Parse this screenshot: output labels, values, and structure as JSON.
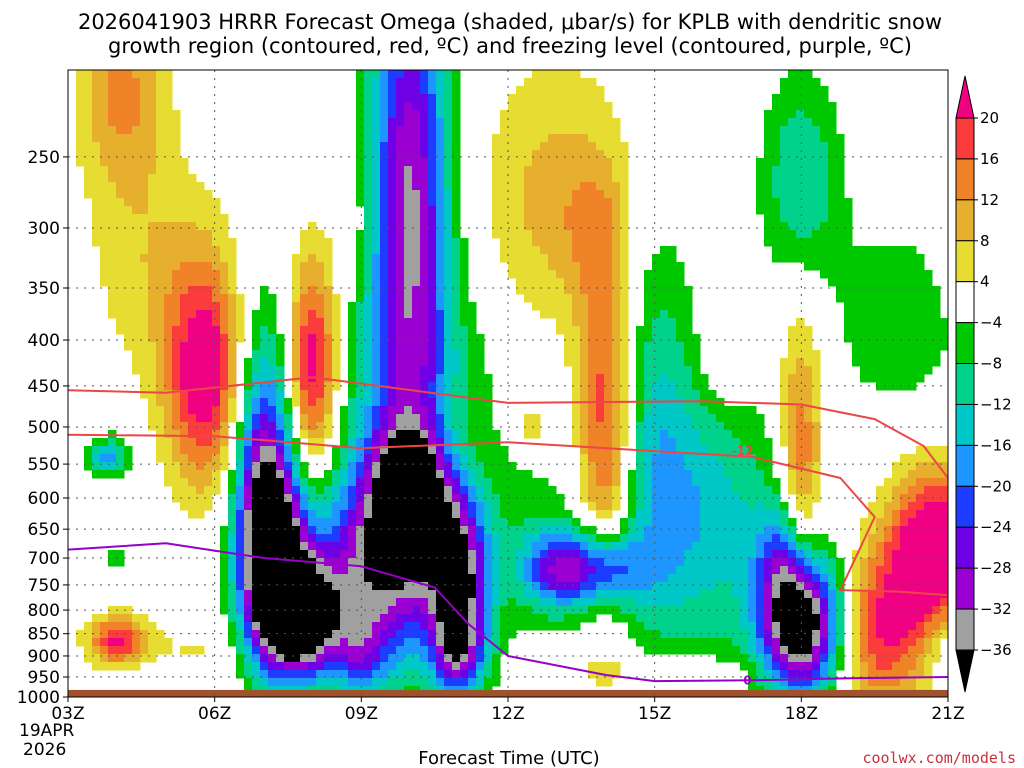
{
  "chart_data": {
    "type": "heatmap",
    "title_line1": "2026041903 HRRR Forecast Omega (shaded, μbar/s) for KPLB with dendritic snow",
    "title_line2": "growth region (contoured, red, ºC) and freezing level (contoured, purple, ºC)",
    "xlabel": "Forecast Time (UTC)",
    "ylabel": "",
    "x_ticks": [
      "03Z",
      "06Z",
      "09Z",
      "12Z",
      "15Z",
      "18Z",
      "21Z"
    ],
    "x_hours": [
      3,
      6,
      9,
      12,
      15,
      18,
      21
    ],
    "x_start_date_line1": "19APR",
    "x_start_date_line2": "2026",
    "y_ticks": [
      250,
      300,
      350,
      400,
      450,
      500,
      550,
      600,
      650,
      700,
      750,
      800,
      850,
      900,
      950,
      1000
    ],
    "y_label_strings": [
      "250",
      "300",
      "350",
      "400",
      "450",
      "500",
      "550",
      "600",
      "650",
      "700",
      "750",
      "800",
      "850",
      "900",
      "950",
      "1000"
    ],
    "y_range_hPa": [
      200,
      1000
    ],
    "colorbar": {
      "levels": [
        -36,
        -32,
        -28,
        -24,
        -20,
        -16,
        -12,
        -8,
        -4,
        4,
        8,
        12,
        16,
        20
      ],
      "labels": [
        "20",
        "16",
        "12",
        "8",
        "4",
        "−4",
        "−8",
        "−12",
        "−16",
        "−20",
        "−24",
        "−28",
        "−32",
        "−36"
      ],
      "colors": [
        "#000000",
        "#a0a0a0",
        "#9b00d2",
        "#6e00e6",
        "#1e3cff",
        "#1e96ff",
        "#00c8c8",
        "#00d28c",
        "#00c800",
        "#ffffff",
        "#e6dc32",
        "#e6af2d",
        "#f08228",
        "#fa3c3c",
        "#f00082"
      ],
      "unit": "μbar/s"
    },
    "features": [
      {
        "kind": "ascent_max",
        "hour": 7.8,
        "hPa": 830,
        "omega": -36
      },
      {
        "kind": "ascent_max",
        "hour": 18.0,
        "hPa": 840,
        "omega": -36
      },
      {
        "kind": "ascent_core",
        "hour": 10.0,
        "hPa": 300,
        "omega": -28
      },
      {
        "kind": "descent_max",
        "hour": 5.8,
        "hPa": 430,
        "omega": 20
      },
      {
        "kind": "descent_max",
        "hour": 8.0,
        "hPa": 420,
        "omega": 20
      },
      {
        "kind": "descent_max",
        "hour": 14.0,
        "hPa": 560,
        "omega": 20
      },
      {
        "kind": "descent_max",
        "hour": 21.0,
        "hPa": 680,
        "omega": 20
      }
    ],
    "contours": {
      "dgz_red": {
        "label": "-12",
        "color": "#ec4646",
        "upper_boundary": [
          [
            3,
            455
          ],
          [
            5,
            458
          ],
          [
            8,
            440
          ],
          [
            12,
            470
          ],
          [
            16,
            468
          ],
          [
            18,
            472
          ],
          [
            19.5,
            490
          ],
          [
            20.5,
            525
          ],
          [
            21,
            570
          ]
        ],
        "lower_boundary": [
          [
            3,
            510
          ],
          [
            6,
            512
          ],
          [
            9,
            528
          ],
          [
            12,
            520
          ],
          [
            15,
            532
          ],
          [
            17,
            540
          ],
          [
            18.8,
            570
          ],
          [
            19.5,
            630
          ],
          [
            18.8,
            760
          ],
          [
            20,
            763
          ],
          [
            21,
            770
          ]
        ]
      },
      "freezing_level_purple": {
        "label": "0",
        "color": "#9600c8",
        "points": [
          [
            3,
            685
          ],
          [
            5,
            674
          ],
          [
            7,
            700
          ],
          [
            9,
            715
          ],
          [
            10.5,
            755
          ],
          [
            11.2,
            830
          ],
          [
            12,
            900
          ],
          [
            14,
            945
          ],
          [
            15,
            960
          ],
          [
            17,
            958
          ],
          [
            19,
            953
          ],
          [
            21,
            950
          ]
        ]
      }
    },
    "terrain": {
      "color": "#a0522d",
      "from_hPa": 982,
      "to_hPa": 1000
    }
  },
  "footer": {
    "credit": "coolwx.com/models"
  }
}
